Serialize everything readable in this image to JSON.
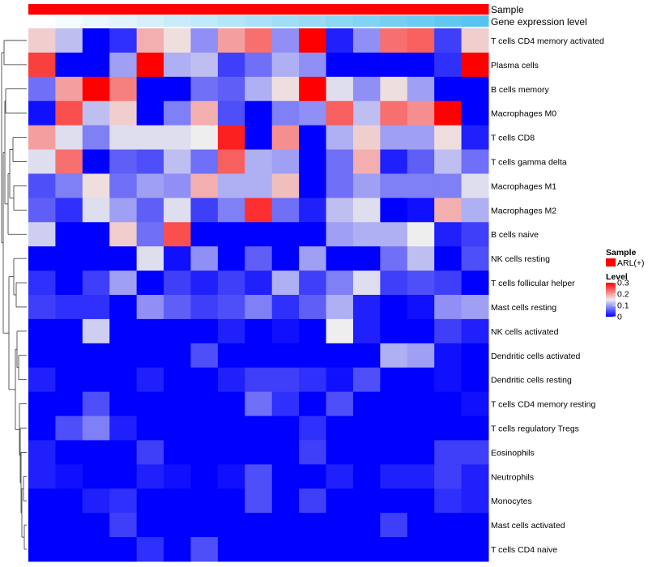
{
  "chart_data": {
    "type": "heatmap",
    "title": "",
    "annotations": [
      {
        "name": "Sample",
        "kind": "categorical",
        "value": "ARL(+)",
        "color": "#ff0000"
      },
      {
        "name": "Gene expression level",
        "kind": "continuous",
        "values": [
          0,
          0.05,
          0.1,
          0.15,
          0.2,
          0.25,
          0.3,
          0.35,
          0.4,
          0.45,
          0.5,
          0.55,
          0.6,
          0.65,
          0.7,
          0.75,
          0.8,
          0.85
        ],
        "color_low": "#ffffff",
        "color_high": "#4cc0ef"
      }
    ],
    "rows": [
      "T cells CD4 memory activated",
      "Plasma cells",
      "B cells memory",
      "Macrophages M0",
      "T cells CD8",
      "T cells gamma delta",
      "Macrophages M1",
      "Macrophages M2",
      "B cells naive",
      "NK cells resting",
      "T cells follicular helper",
      "Mast cells resting",
      "NK cells activated",
      "Dendritic cells activated",
      "Dendritic cells resting",
      "T cells CD4 memory resting",
      "T cells regulatory  Tregs",
      "Eosinophils",
      "Neutrophils",
      "Monocytes",
      "Mast cells activated",
      "T cells CD4 naive"
    ],
    "values": [
      [
        0.17,
        0.12,
        0.0,
        0.03,
        0.19,
        0.16,
        0.09,
        0.2,
        0.23,
        0.09,
        0.3,
        0.02,
        0.09,
        0.23,
        0.24,
        0.04,
        0.17
      ],
      [
        0.26,
        0.0,
        0.0,
        0.1,
        0.3,
        0.11,
        0.12,
        0.04,
        0.07,
        0.11,
        0.09,
        0.0,
        0.0,
        0.0,
        0.0,
        0.03,
        0.3
      ],
      [
        0.07,
        0.2,
        0.3,
        0.22,
        0.0,
        0.0,
        0.07,
        0.06,
        0.11,
        0.16,
        0.3,
        0.14,
        0.09,
        0.16,
        0.1,
        0.0,
        0.0
      ],
      [
        0.01,
        0.25,
        0.12,
        0.17,
        0.0,
        0.08,
        0.19,
        0.05,
        0.0,
        0.08,
        0.09,
        0.24,
        0.12,
        0.23,
        0.21,
        0.3,
        0.0
      ],
      [
        0.2,
        0.14,
        0.08,
        0.14,
        0.14,
        0.14,
        0.15,
        0.28,
        0.0,
        0.21,
        0.0,
        0.11,
        0.17,
        0.1,
        0.1,
        0.16,
        0.02
      ],
      [
        0.14,
        0.23,
        0.0,
        0.06,
        0.05,
        0.12,
        0.07,
        0.24,
        0.11,
        0.1,
        0.0,
        0.07,
        0.19,
        0.02,
        0.06,
        0.12,
        0.07
      ],
      [
        0.05,
        0.08,
        0.16,
        0.07,
        0.1,
        0.09,
        0.19,
        0.11,
        0.11,
        0.18,
        0.0,
        0.07,
        0.1,
        0.08,
        0.08,
        0.08,
        0.14
      ],
      [
        0.06,
        0.03,
        0.14,
        0.1,
        0.06,
        0.14,
        0.04,
        0.08,
        0.27,
        0.07,
        0.02,
        0.12,
        0.14,
        0.0,
        0.01,
        0.19,
        0.11
      ],
      [
        0.13,
        0.0,
        0.0,
        0.17,
        0.07,
        0.25,
        0.0,
        0.0,
        0.0,
        0.0,
        0.0,
        0.1,
        0.11,
        0.11,
        0.15,
        0.02,
        0.04
      ],
      [
        0.0,
        0.0,
        0.0,
        0.0,
        0.14,
        0.01,
        0.09,
        0.0,
        0.06,
        0.0,
        0.1,
        0.0,
        0.0,
        0.07,
        0.12,
        0.0,
        0.05
      ],
      [
        0.03,
        0.0,
        0.04,
        0.1,
        0.0,
        0.04,
        0.02,
        0.04,
        0.02,
        0.11,
        0.04,
        0.08,
        0.14,
        0.04,
        0.05,
        0.04,
        0.0
      ],
      [
        0.04,
        0.03,
        0.03,
        0.0,
        0.09,
        0.06,
        0.04,
        0.05,
        0.08,
        0.03,
        0.06,
        0.11,
        0.02,
        0.0,
        0.01,
        0.09,
        0.1
      ],
      [
        0.0,
        0.0,
        0.13,
        0.0,
        0.0,
        0.0,
        0.0,
        0.02,
        0.0,
        0.01,
        0.0,
        0.15,
        0.02,
        0.0,
        0.0,
        0.04,
        0.02
      ],
      [
        0.0,
        0.0,
        0.0,
        0.0,
        0.0,
        0.0,
        0.05,
        0.0,
        0.0,
        0.0,
        0.0,
        0.0,
        0.0,
        0.11,
        0.1,
        0.01,
        0.0
      ],
      [
        0.02,
        0.0,
        0.0,
        0.0,
        0.02,
        0.0,
        0.0,
        0.02,
        0.04,
        0.04,
        0.03,
        0.01,
        0.05,
        0.0,
        0.0,
        0.01,
        0.0
      ],
      [
        0.0,
        0.0,
        0.05,
        0.0,
        0.0,
        0.0,
        0.0,
        0.0,
        0.07,
        0.03,
        0.0,
        0.05,
        0.0,
        0.0,
        0.0,
        0.0,
        0.01
      ],
      [
        0.0,
        0.05,
        0.08,
        0.02,
        0.0,
        0.0,
        0.0,
        0.0,
        0.0,
        0.0,
        0.03,
        0.0,
        0.0,
        0.0,
        0.0,
        0.0,
        0.0
      ],
      [
        0.02,
        0.0,
        0.0,
        0.0,
        0.04,
        0.0,
        0.0,
        0.0,
        0.0,
        0.0,
        0.04,
        0.0,
        0.0,
        0.0,
        0.0,
        0.04,
        0.04
      ],
      [
        0.02,
        0.01,
        0.0,
        0.0,
        0.02,
        0.01,
        0.0,
        0.01,
        0.05,
        0.0,
        0.0,
        0.02,
        0.0,
        0.02,
        0.02,
        0.04,
        0.02
      ],
      [
        0.0,
        0.0,
        0.02,
        0.03,
        0.0,
        0.0,
        0.0,
        0.0,
        0.05,
        0.0,
        0.04,
        0.0,
        0.0,
        0.0,
        0.0,
        0.03,
        0.02
      ],
      [
        0.0,
        0.0,
        0.0,
        0.04,
        0.0,
        0.0,
        0.0,
        0.0,
        0.0,
        0.0,
        0.0,
        0.0,
        0.0,
        0.04,
        0.0,
        0.0,
        0.0
      ],
      [
        0.0,
        0.0,
        0.0,
        0.0,
        0.03,
        0.0,
        0.05,
        0.0,
        0.0,
        0.0,
        0.0,
        0.0,
        0.0,
        0.0,
        0.0,
        0.0,
        0.0
      ]
    ],
    "color_scale": {
      "min": 0,
      "mid": 0.15,
      "max": 0.3,
      "low_color": "#0000ff",
      "mid_color": "#eeeeee",
      "high_color": "#ff0000"
    },
    "legend": {
      "sample_title": "Sample",
      "sample_label": "ARL(+)",
      "level_title": "Level",
      "level_ticks": [
        "0.3",
        "0.2",
        "0.1",
        "0"
      ],
      "level_tick_values": [
        0.3,
        0.2,
        0.1,
        0
      ],
      "placement": "right"
    },
    "row_dendrogram": "left",
    "xlabel": "",
    "ylabel": ""
  }
}
